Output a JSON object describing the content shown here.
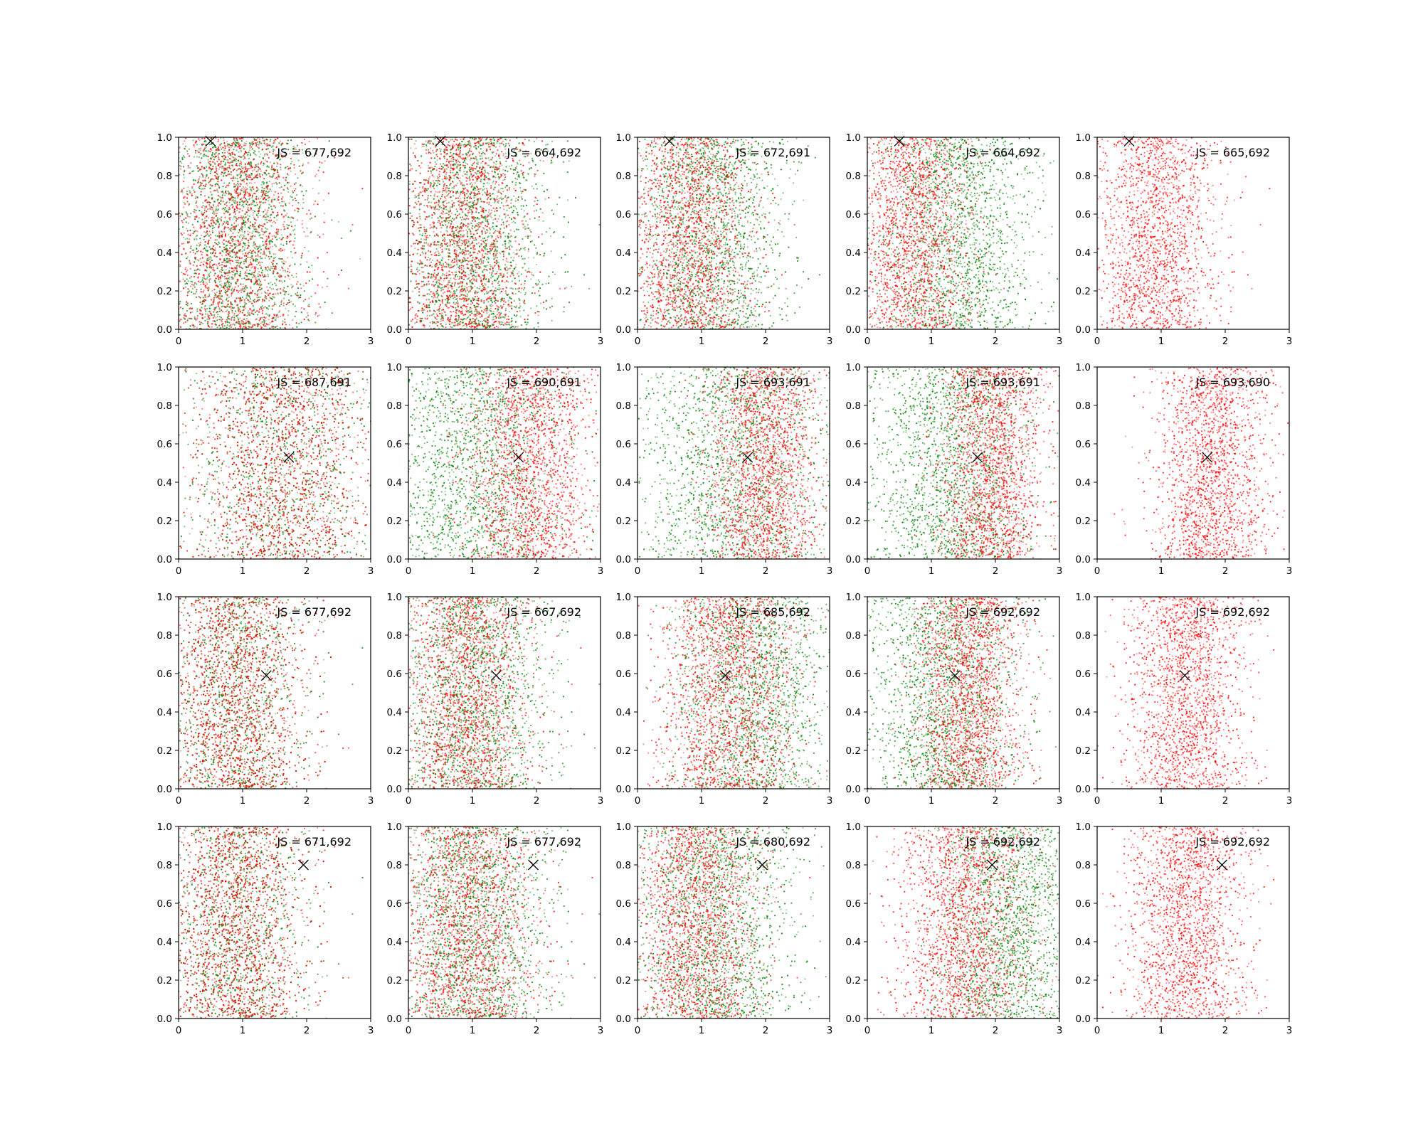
{
  "chart_data": {
    "type": "scatter",
    "grid": false,
    "rows": 4,
    "cols": 5,
    "xlim": [
      0,
      3
    ],
    "ylim": [
      0,
      1
    ],
    "x_ticks": [
      "0",
      "1",
      "2",
      "3"
    ],
    "y_ticks": [
      "0.0",
      "0.2",
      "0.4",
      "0.6",
      "0.8",
      "1.0"
    ],
    "colors": {
      "series_a": "#ff0000",
      "series_b": "#008000",
      "marker": "#000000"
    },
    "rows_data": [
      {
        "marker": [
          0.5,
          0.98
        ],
        "panels": [
          {
            "label": "JS = 677,692",
            "red_x": [
              0.9,
              0.55
            ],
            "green_x": [
              0.9,
              0.55
            ]
          },
          {
            "label": "JS = 664,692",
            "red_x": [
              0.85,
              0.5
            ],
            "green_x": [
              1.0,
              0.6
            ]
          },
          {
            "label": "JS = 672,691",
            "red_x": [
              0.8,
              0.5
            ],
            "green_x": [
              1.1,
              0.6
            ]
          },
          {
            "label": "JS = 664,692",
            "red_x": [
              0.7,
              0.45
            ],
            "green_x": [
              1.4,
              0.6
            ]
          },
          {
            "label": "JS = 665,692",
            "red_x": [
              0.9,
              0.5
            ],
            "green_x": null
          }
        ]
      },
      {
        "marker": [
          1.72,
          0.53
        ],
        "panels": [
          {
            "label": "JS = 687,691",
            "red_x": [
              1.6,
              0.75
            ],
            "green_x": [
              1.6,
              0.75
            ]
          },
          {
            "label": "JS = 690,691",
            "red_x": [
              1.9,
              0.5
            ],
            "green_x": [
              1.0,
              0.75
            ]
          },
          {
            "label": "JS = 693,691",
            "red_x": [
              2.0,
              0.45
            ],
            "green_x": [
              1.5,
              0.8
            ]
          },
          {
            "label": "JS = 693,691",
            "red_x": [
              1.95,
              0.4
            ],
            "green_x": [
              1.3,
              0.65
            ]
          },
          {
            "label": "JS = 693,690",
            "red_x": [
              1.8,
              0.45
            ],
            "green_x": null
          }
        ]
      },
      {
        "marker": [
          1.37,
          0.59
        ],
        "panels": [
          {
            "label": "JS = 677,692",
            "red_x": [
              0.9,
              0.55
            ],
            "green_x": [
              0.9,
              0.55
            ]
          },
          {
            "label": "JS = 667,692",
            "red_x": [
              0.9,
              0.5
            ],
            "green_x": [
              1.0,
              0.6
            ]
          },
          {
            "label": "JS = 685,692",
            "red_x": [
              1.4,
              0.55
            ],
            "green_x": [
              1.8,
              0.6
            ]
          },
          {
            "label": "JS = 692,692",
            "red_x": [
              1.6,
              0.4
            ],
            "green_x": [
              1.2,
              0.6
            ]
          },
          {
            "label": "JS = 692,692",
            "red_x": [
              1.4,
              0.45
            ],
            "green_x": null
          }
        ]
      },
      {
        "marker": [
          1.95,
          0.8
        ],
        "panels": [
          {
            "label": "JS = 671,692",
            "red_x": [
              0.9,
              0.55
            ],
            "green_x": [
              0.9,
              0.55
            ]
          },
          {
            "label": "JS = 677,692",
            "red_x": [
              0.9,
              0.55
            ],
            "green_x": [
              1.0,
              0.6
            ]
          },
          {
            "label": "JS = 680,692",
            "red_x": [
              0.9,
              0.5
            ],
            "green_x": [
              1.2,
              0.6
            ]
          },
          {
            "label": "JS = 692,692",
            "red_x": [
              1.5,
              0.5
            ],
            "green_x": [
              2.2,
              0.55
            ]
          },
          {
            "label": "JS = 692,692",
            "red_x": [
              1.4,
              0.45
            ],
            "green_x": null
          }
        ]
      }
    ]
  }
}
